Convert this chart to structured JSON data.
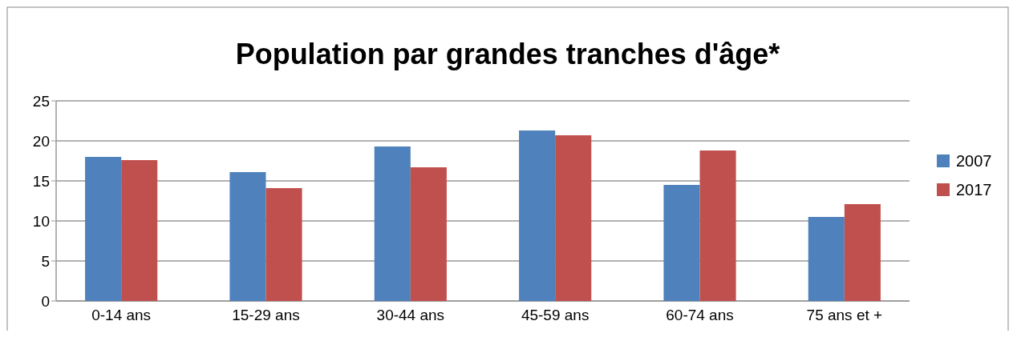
{
  "chart_data": {
    "type": "bar",
    "title": "Population par grandes tranches d'âge*",
    "categories": [
      "0-14 ans",
      "15-29 ans",
      "30-44 ans",
      "45-59 ans",
      "60-74 ans",
      "75 ans et +"
    ],
    "series": [
      {
        "name": "2007",
        "color": "#4f81bd",
        "values": [
          18.0,
          16.1,
          19.3,
          21.3,
          14.5,
          10.5
        ]
      },
      {
        "name": "2017",
        "color": "#c0504d",
        "values": [
          17.6,
          14.1,
          16.7,
          20.7,
          18.8,
          12.1
        ]
      }
    ],
    "ylim": [
      0,
      25
    ],
    "yticks": [
      0,
      5,
      10,
      15,
      20,
      25
    ],
    "grid": "y",
    "legend": "right"
  }
}
